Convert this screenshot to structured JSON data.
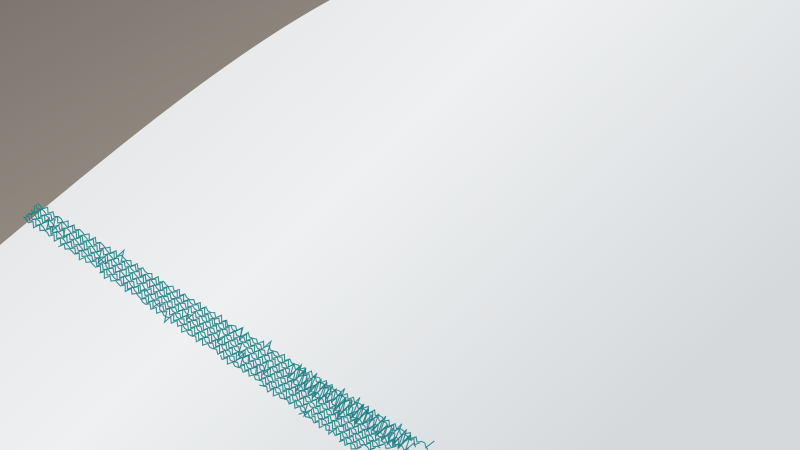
{
  "image": {
    "subject": "seismograph-paper",
    "colors": {
      "background_dark": "#7d766e",
      "background_light": "#c2bab0",
      "paper": "#eceef0",
      "paper_shade": "#d9dcdf",
      "trace": "#1f7f86"
    }
  }
}
